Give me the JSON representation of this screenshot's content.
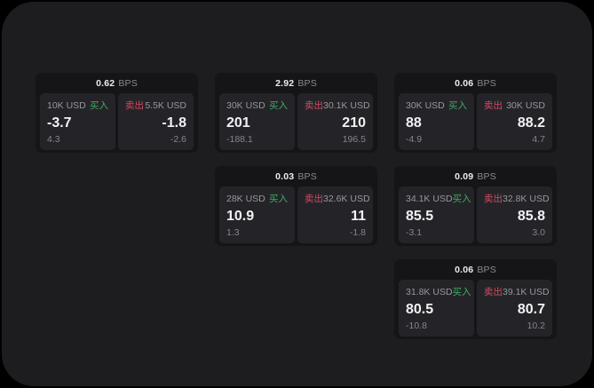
{
  "labels": {
    "buy": "买入",
    "sell": "卖出",
    "bps_suffix": "BPS"
  },
  "colors": {
    "buy_green": "#3fac62",
    "sell_red": "#d34a63",
    "panel_bg": "#1d1d20",
    "card_bg": "#151517",
    "subpanel_bg": "#242428"
  },
  "cards": [
    {
      "row": 1,
      "col": 1,
      "bps": "0.62",
      "buy": {
        "amount": "10K USD",
        "value": "-3.7",
        "sub": "4.3"
      },
      "sell": {
        "amount": "5.5K USD",
        "value": "-1.8",
        "sub": "-2.6"
      }
    },
    {
      "row": 1,
      "col": 2,
      "bps": "2.92",
      "buy": {
        "amount": "30K USD",
        "value": "201",
        "sub": "-188.1"
      },
      "sell": {
        "amount": "30.1K USD",
        "value": "210",
        "sub": "196.5"
      }
    },
    {
      "row": 1,
      "col": 3,
      "bps": "0.06",
      "buy": {
        "amount": "30K USD",
        "value": "88",
        "sub": "-4.9"
      },
      "sell": {
        "amount": "30K USD",
        "value": "88.2",
        "sub": "4.7"
      }
    },
    {
      "row": 2,
      "col": 2,
      "bps": "0.03",
      "buy": {
        "amount": "28K USD",
        "value": "10.9",
        "sub": "1.3"
      },
      "sell": {
        "amount": "32.6K USD",
        "value": "11",
        "sub": "-1.8"
      }
    },
    {
      "row": 2,
      "col": 3,
      "bps": "0.09",
      "buy": {
        "amount": "34.1K USD",
        "value": "85.5",
        "sub": "-3.1"
      },
      "sell": {
        "amount": "32.8K USD",
        "value": "85.8",
        "sub": "3.0"
      }
    },
    {
      "row": 3,
      "col": 3,
      "bps": "0.06",
      "buy": {
        "amount": "31.8K USD",
        "value": "80.5",
        "sub": "-10.8"
      },
      "sell": {
        "amount": "39.1K USD",
        "value": "80.7",
        "sub": "10.2"
      }
    }
  ]
}
